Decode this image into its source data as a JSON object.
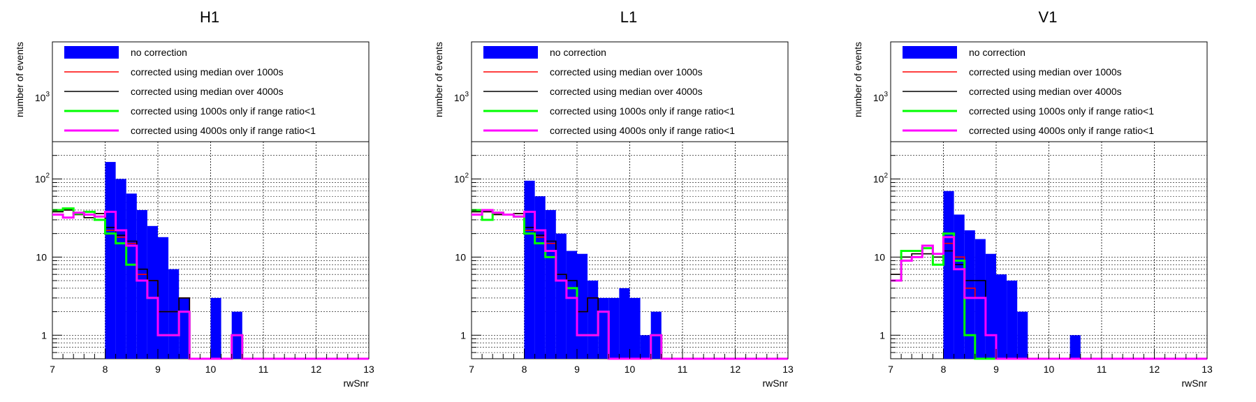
{
  "colors": {
    "no_correction": "#0000ff",
    "median_1000s": "#ff0000",
    "median_4000s": "#000000",
    "range_1000s": "#00ff00",
    "range_4000s": "#ff00ff",
    "grid": "#000000"
  },
  "chart_data": [
    {
      "type": "histogram",
      "title": "H1",
      "xlabel": "rwSnr",
      "ylabel": "number of events",
      "xlim": [
        7,
        13
      ],
      "ylim": [
        0.5,
        6000
      ],
      "yscale": "log",
      "grid": true,
      "legend_position": "top",
      "x_ticks": [
        "7",
        "8",
        "9",
        "10",
        "11",
        "12",
        "13"
      ],
      "y_ticks": [
        {
          "value": 1,
          "label": "1"
        },
        {
          "value": 10,
          "label": "10"
        },
        {
          "value": 100,
          "label": "10^2"
        },
        {
          "value": 1000,
          "label": "10^3"
        }
      ],
      "bin_edges": [
        7.0,
        7.2,
        7.4,
        7.6,
        7.8,
        8.0,
        8.2,
        8.4,
        8.6,
        8.8,
        9.0,
        9.2,
        9.4,
        9.6,
        9.8,
        10.0,
        10.2,
        10.4,
        10.6,
        10.8,
        11.0,
        11.2,
        11.4,
        11.6,
        11.8,
        12.0,
        12.2,
        12.4,
        12.6,
        12.8,
        13.0
      ],
      "series": [
        {
          "name": "no correction",
          "color_key": "no_correction",
          "style": "fill",
          "values": [
            0,
            0,
            0,
            0,
            0,
            165,
            100,
            65,
            40,
            25,
            18,
            7,
            3,
            0,
            0,
            3,
            0,
            2,
            0,
            0,
            0,
            0,
            0,
            0,
            0,
            0,
            0,
            0,
            0,
            0
          ]
        },
        {
          "name": "corrected using median over 1000s",
          "color_key": "median_1000s",
          "style": "line",
          "values": [
            38,
            40,
            35,
            32,
            36,
            22,
            18,
            15,
            6,
            5,
            2,
            2,
            3,
            0,
            0,
            0,
            0,
            1,
            0,
            0,
            0,
            0,
            0,
            0,
            0,
            0,
            0,
            0,
            0,
            0
          ]
        },
        {
          "name": "corrected using median over 4000s",
          "color_key": "median_4000s",
          "style": "line",
          "values": [
            38,
            40,
            35,
            32,
            36,
            24,
            19,
            16,
            7,
            5,
            2,
            2,
            3,
            0,
            0,
            0,
            0,
            1,
            0,
            0,
            0,
            0,
            0,
            0,
            0,
            0,
            0,
            0,
            0,
            0
          ]
        },
        {
          "name": "corrected using 1000s only if range ratio<1",
          "color_key": "range_1000s",
          "style": "line",
          "values": [
            40,
            42,
            36,
            38,
            30,
            20,
            15,
            8,
            5,
            3,
            1,
            1,
            2,
            0,
            0,
            0,
            0,
            1,
            0,
            0,
            0,
            0,
            0,
            0,
            0,
            0,
            0,
            0,
            0,
            0
          ]
        },
        {
          "name": "corrected using 4000s only if range ratio<1",
          "color_key": "range_4000s",
          "style": "line",
          "values": [
            35,
            32,
            37,
            35,
            33,
            38,
            22,
            14,
            5,
            3,
            1,
            1,
            2,
            0,
            0,
            0,
            0,
            1,
            0,
            0,
            0,
            0,
            0,
            0,
            0,
            0,
            0,
            0,
            0,
            0
          ]
        }
      ]
    },
    {
      "type": "histogram",
      "title": "L1",
      "xlabel": "rwSnr",
      "ylabel": "number of events",
      "xlim": [
        7,
        13
      ],
      "ylim": [
        0.5,
        6000
      ],
      "yscale": "log",
      "grid": true,
      "legend_position": "top",
      "x_ticks": [
        "7",
        "8",
        "9",
        "10",
        "11",
        "12",
        "13"
      ],
      "y_ticks": [
        {
          "value": 1,
          "label": "1"
        },
        {
          "value": 10,
          "label": "10"
        },
        {
          "value": 100,
          "label": "10^2"
        },
        {
          "value": 1000,
          "label": "10^3"
        }
      ],
      "bin_edges": [
        7.0,
        7.2,
        7.4,
        7.6,
        7.8,
        8.0,
        8.2,
        8.4,
        8.6,
        8.8,
        9.0,
        9.2,
        9.4,
        9.6,
        9.8,
        10.0,
        10.2,
        10.4,
        10.6,
        10.8,
        11.0,
        11.2,
        11.4,
        11.6,
        11.8,
        12.0,
        12.2,
        12.4,
        12.6,
        12.8,
        13.0
      ],
      "series": [
        {
          "name": "no correction",
          "color_key": "no_correction",
          "style": "fill",
          "values": [
            0,
            0,
            0,
            0,
            0,
            95,
            60,
            40,
            20,
            12,
            11,
            5,
            3,
            3,
            4,
            3,
            1,
            2,
            0,
            0,
            0,
            0,
            0,
            0,
            0,
            0,
            0,
            0,
            0,
            0
          ]
        },
        {
          "name": "corrected using median over 1000s",
          "color_key": "median_1000s",
          "style": "line",
          "values": [
            38,
            38,
            35,
            35,
            36,
            22,
            18,
            15,
            6,
            4,
            2,
            3,
            2,
            0,
            0,
            0,
            0,
            1,
            0,
            0,
            0,
            0,
            0,
            0,
            0,
            0,
            0,
            0,
            0,
            0
          ]
        },
        {
          "name": "corrected using median over 4000s",
          "color_key": "median_4000s",
          "style": "line",
          "values": [
            38,
            38,
            35,
            35,
            36,
            24,
            19,
            16,
            6,
            5,
            2,
            3,
            2,
            0,
            0,
            0,
            0,
            1,
            0,
            0,
            0,
            0,
            0,
            0,
            0,
            0,
            0,
            0,
            0,
            0
          ]
        },
        {
          "name": "corrected using 1000s only if range ratio<1",
          "color_key": "range_1000s",
          "style": "line",
          "values": [
            40,
            30,
            37,
            35,
            33,
            20,
            15,
            10,
            5,
            4,
            1,
            1,
            2,
            0,
            0,
            0,
            0,
            1,
            0,
            0,
            0,
            0,
            0,
            0,
            0,
            0,
            0,
            0,
            0,
            0
          ]
        },
        {
          "name": "corrected using 4000s only if range ratio<1",
          "color_key": "range_4000s",
          "style": "line",
          "values": [
            35,
            40,
            37,
            35,
            33,
            38,
            22,
            12,
            5,
            3,
            1,
            1,
            2,
            0,
            0,
            0,
            0,
            1,
            0,
            0,
            0,
            0,
            0,
            0,
            0,
            0,
            0,
            0,
            0,
            0
          ]
        }
      ]
    },
    {
      "type": "histogram",
      "title": "V1",
      "xlabel": "rwSnr",
      "ylabel": "number of events",
      "xlim": [
        7,
        13
      ],
      "ylim": [
        0.5,
        6000
      ],
      "yscale": "log",
      "grid": true,
      "legend_position": "top",
      "x_ticks": [
        "7",
        "8",
        "9",
        "10",
        "11",
        "12",
        "13"
      ],
      "y_ticks": [
        {
          "value": 1,
          "label": "1"
        },
        {
          "value": 10,
          "label": "10"
        },
        {
          "value": 100,
          "label": "10^2"
        },
        {
          "value": 1000,
          "label": "10^3"
        }
      ],
      "bin_edges": [
        7.0,
        7.2,
        7.4,
        7.6,
        7.8,
        8.0,
        8.2,
        8.4,
        8.6,
        8.8,
        9.0,
        9.2,
        9.4,
        9.6,
        9.8,
        10.0,
        10.2,
        10.4,
        10.6,
        10.8,
        11.0,
        11.2,
        11.4,
        11.6,
        11.8,
        12.0,
        12.2,
        12.4,
        12.6,
        12.8,
        13.0
      ],
      "series": [
        {
          "name": "no correction",
          "color_key": "no_correction",
          "style": "fill",
          "values": [
            0,
            0,
            0,
            0,
            0,
            70,
            35,
            22,
            17,
            11,
            6,
            5,
            2,
            0,
            0,
            0,
            0,
            1,
            0,
            0,
            0,
            0,
            0,
            0,
            0,
            0,
            0,
            0,
            0,
            0
          ]
        },
        {
          "name": "corrected using median over 1000s",
          "color_key": "median_1000s",
          "style": "line",
          "values": [
            6,
            10,
            11,
            11,
            10,
            15,
            10,
            4,
            3,
            1,
            0,
            0,
            0,
            0,
            0,
            0,
            0,
            0,
            0,
            0,
            0,
            0,
            0,
            0,
            0,
            0,
            0,
            0,
            0,
            0
          ]
        },
        {
          "name": "corrected using median over 4000s",
          "color_key": "median_4000s",
          "style": "line",
          "values": [
            6,
            10,
            11,
            11,
            10,
            12,
            8,
            5,
            5,
            1,
            0,
            0,
            0,
            0,
            0,
            0,
            0,
            0,
            0,
            0,
            0,
            0,
            0,
            0,
            0,
            0,
            0,
            0,
            0,
            0
          ]
        },
        {
          "name": "corrected using 1000s only if range ratio<1",
          "color_key": "range_1000s",
          "style": "line",
          "values": [
            5,
            12,
            12,
            13,
            8,
            20,
            9,
            1,
            0,
            0,
            0,
            0,
            0,
            0,
            0,
            0,
            0,
            0,
            0,
            0,
            0,
            0,
            0,
            0,
            0,
            0,
            0,
            0,
            0,
            0
          ]
        },
        {
          "name": "corrected using 4000s only if range ratio<1",
          "color_key": "range_4000s",
          "style": "line",
          "values": [
            5,
            9,
            10,
            14,
            11,
            18,
            7,
            3,
            3,
            1,
            0,
            0,
            0,
            0,
            0,
            0,
            0,
            0,
            0,
            0,
            0,
            0,
            0,
            0,
            0,
            0,
            0,
            0,
            0,
            0
          ]
        }
      ]
    }
  ]
}
